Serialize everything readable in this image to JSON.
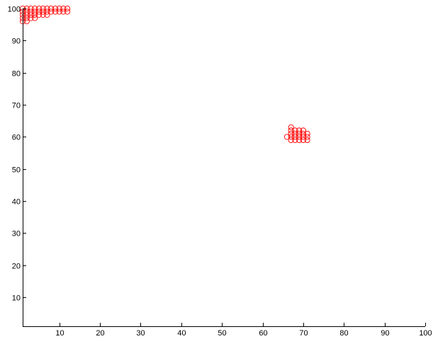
{
  "chart_data": {
    "type": "scatter",
    "title": "",
    "xlabel": "",
    "ylabel": "",
    "xlim": [
      1,
      100
    ],
    "ylim": [
      1,
      100
    ],
    "grid": false,
    "legend": "none",
    "x_ticks": [
      10,
      20,
      30,
      40,
      50,
      60,
      70,
      80,
      90,
      100
    ],
    "y_ticks": [
      10,
      20,
      30,
      40,
      50,
      60,
      70,
      80,
      90,
      100
    ],
    "marker": "circle",
    "colors": {
      "marker": "#ff0000",
      "axis": "#000000",
      "background": "#ffffff"
    },
    "series": [
      {
        "color": "#ff0000",
        "points": [
          [
            1,
            100
          ],
          [
            2,
            100
          ],
          [
            3,
            100
          ],
          [
            4,
            100
          ],
          [
            5,
            100
          ],
          [
            6,
            100
          ],
          [
            7,
            100
          ],
          [
            8,
            100
          ],
          [
            9,
            100
          ],
          [
            10,
            100
          ],
          [
            11,
            100
          ],
          [
            12,
            100
          ],
          [
            1,
            99
          ],
          [
            2,
            99
          ],
          [
            3,
            99
          ],
          [
            4,
            99
          ],
          [
            5,
            99
          ],
          [
            6,
            99
          ],
          [
            7,
            99
          ],
          [
            8,
            99
          ],
          [
            9,
            99
          ],
          [
            10,
            99
          ],
          [
            11,
            99
          ],
          [
            12,
            99
          ],
          [
            1,
            98
          ],
          [
            2,
            98
          ],
          [
            3,
            98
          ],
          [
            4,
            98
          ],
          [
            5,
            98
          ],
          [
            6,
            98
          ],
          [
            7,
            98
          ],
          [
            1,
            97
          ],
          [
            2,
            97
          ],
          [
            3,
            97
          ],
          [
            4,
            97
          ],
          [
            1,
            96
          ],
          [
            2,
            96
          ],
          [
            67,
            63
          ],
          [
            67,
            62
          ],
          [
            68,
            62
          ],
          [
            69,
            62
          ],
          [
            70,
            62
          ],
          [
            67,
            61
          ],
          [
            68,
            61
          ],
          [
            69,
            61
          ],
          [
            70,
            61
          ],
          [
            71,
            61
          ],
          [
            66,
            60
          ],
          [
            67,
            60
          ],
          [
            68,
            60
          ],
          [
            69,
            60
          ],
          [
            70,
            60
          ],
          [
            71,
            60
          ],
          [
            67,
            59
          ],
          [
            68,
            59
          ],
          [
            69,
            59
          ],
          [
            70,
            59
          ],
          [
            71,
            59
          ]
        ]
      }
    ]
  }
}
